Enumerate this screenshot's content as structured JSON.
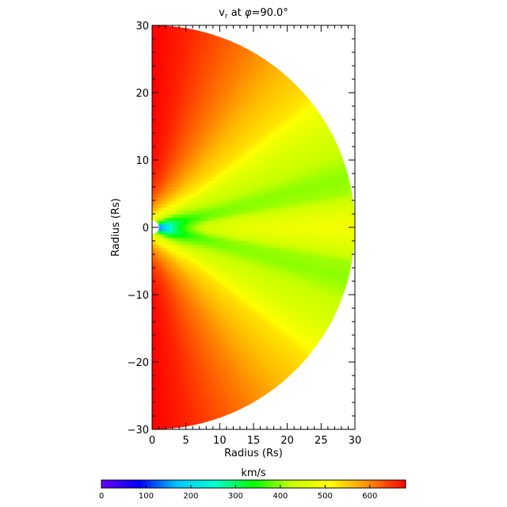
{
  "chart_data": {
    "type": "heatmap",
    "title": {
      "var": "v",
      "sub": "r",
      "middle": " at ",
      "sym": "φ",
      "rest": "=90.0°"
    },
    "xlabel": "Radius (Rs)",
    "ylabel": "Radius (Rs)",
    "xlim": [
      0,
      30
    ],
    "ylim": [
      -30,
      30
    ],
    "x_ticks": [
      "0",
      "5",
      "10",
      "15",
      "20",
      "25",
      "30"
    ],
    "y_ticks": [
      "30",
      "20",
      "10",
      "0",
      "−10",
      "−20",
      "−30"
    ],
    "domain_shape": "half-disk of radius 30 Rs centred at origin, right half (x ≥ 0)",
    "inner_boundary_radius": 1,
    "value_profile": {
      "description": "radial solar wind speed vs latitude: slow near equator, fast at poles",
      "latitudes_deg": [
        0,
        5,
        10,
        15,
        20,
        25,
        30,
        35,
        40,
        50,
        60,
        70,
        80,
        90
      ],
      "speed_kms_far": [
        500,
        470,
        410,
        400,
        420,
        440,
        460,
        490,
        530,
        560,
        600,
        630,
        660,
        680
      ],
      "speed_kms_near_sun_equator": 100
    },
    "colorbar": {
      "label": "km/s",
      "range": [
        0,
        680
      ],
      "ticks": [
        "0",
        "100",
        "200",
        "300",
        "400",
        "500",
        "600"
      ],
      "colors": [
        "#6a00ff",
        "#0000ff",
        "#00c8ff",
        "#00ffd0",
        "#00ff00",
        "#c8ff00",
        "#ffff00",
        "#ff9000",
        "#ff0000"
      ]
    }
  }
}
